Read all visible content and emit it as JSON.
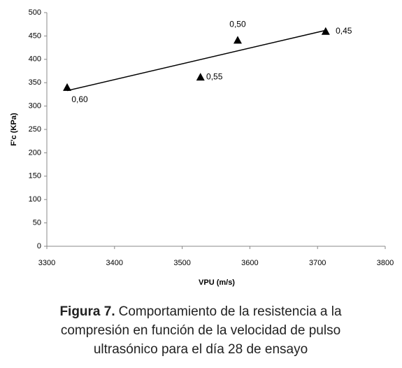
{
  "chart_data": {
    "type": "scatter",
    "x_label": "VPU (m/s)",
    "y_label": "F'c (KPa)",
    "x": [
      3330,
      3527,
      3582,
      3712
    ],
    "values": [
      340,
      362,
      441,
      460
    ],
    "point_labels": [
      "0,60",
      "0,55",
      "0,50",
      "0,45"
    ],
    "color": "#000000",
    "trend_line": {
      "x": [
        3330,
        3712
      ],
      "y": [
        333,
        462
      ]
    },
    "xlim": [
      3300,
      3800
    ],
    "xticks": [
      3300,
      3400,
      3500,
      3600,
      3700,
      3800
    ],
    "ylim": [
      0,
      500
    ],
    "yticks": [
      0,
      50,
      100,
      150,
      200,
      250,
      300,
      350,
      400,
      450,
      500
    ],
    "grid": false,
    "caption_label": "Figura 7.",
    "caption_lines": [
      "Comportamiento de la resistencia a la",
      "compresión en función de la velocidad de pulso",
      "ultrasónico para el día 28 de ensayo"
    ]
  }
}
